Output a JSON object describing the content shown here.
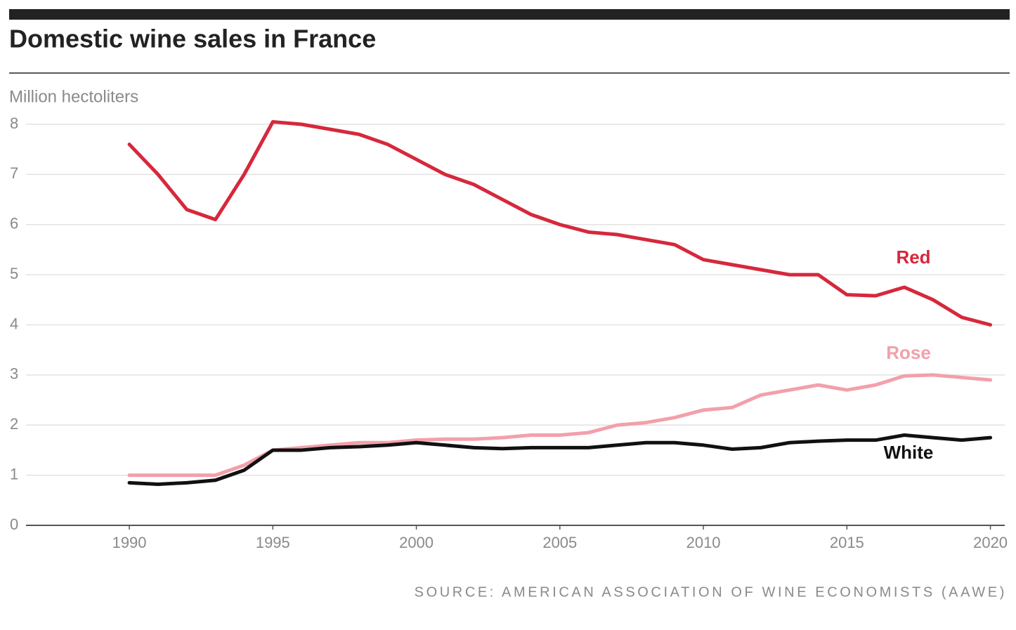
{
  "chart_data": {
    "type": "line",
    "title": "Domestic wine sales in France",
    "y_axis_label": "Million hectoliters",
    "source": "SOURCE: AMERICAN ASSOCIATION OF WINE ECONOMISTS (AAWE)",
    "x": [
      1990,
      1991,
      1992,
      1993,
      1994,
      1995,
      1996,
      1997,
      1998,
      1999,
      2000,
      2001,
      2002,
      2003,
      2004,
      2005,
      2006,
      2007,
      2008,
      2009,
      2010,
      2011,
      2012,
      2013,
      2014,
      2015,
      2016,
      2017,
      2018,
      2019,
      2020
    ],
    "series": [
      {
        "name": "Red",
        "color": "#d6283c",
        "values": [
          7.6,
          7.0,
          6.3,
          6.1,
          7.0,
          8.05,
          8.0,
          7.9,
          7.8,
          7.6,
          7.3,
          7.0,
          6.8,
          6.5,
          6.2,
          6.0,
          5.85,
          5.8,
          5.7,
          5.6,
          5.3,
          5.2,
          5.1,
          5.0,
          5.0,
          4.6,
          4.58,
          4.75,
          4.5,
          4.15,
          4.0
        ]
      },
      {
        "name": "Rose",
        "color": "#f2a0aa",
        "values": [
          1.0,
          1.0,
          1.0,
          1.0,
          1.2,
          1.5,
          1.55,
          1.6,
          1.65,
          1.65,
          1.7,
          1.72,
          1.72,
          1.75,
          1.8,
          1.8,
          1.85,
          2.0,
          2.05,
          2.15,
          2.3,
          2.35,
          2.6,
          2.7,
          2.8,
          2.7,
          2.8,
          2.98,
          3.0,
          2.95,
          2.9
        ]
      },
      {
        "name": "White",
        "color": "#111111",
        "values": [
          0.85,
          0.82,
          0.85,
          0.9,
          1.1,
          1.5,
          1.5,
          1.55,
          1.57,
          1.6,
          1.65,
          1.6,
          1.55,
          1.53,
          1.55,
          1.55,
          1.55,
          1.6,
          1.65,
          1.65,
          1.6,
          1.52,
          1.55,
          1.65,
          1.68,
          1.7,
          1.7,
          1.8,
          1.75,
          1.7,
          1.75
        ]
      }
    ],
    "xlim": [
      1986.4,
      2020.5
    ],
    "xticks": [
      1990,
      1995,
      2000,
      2005,
      2010,
      2015,
      2020
    ],
    "ylim": [
      0,
      8
    ],
    "yticks": [
      0,
      1,
      2,
      3,
      4,
      5,
      6,
      7,
      8
    ],
    "grid": true
  }
}
